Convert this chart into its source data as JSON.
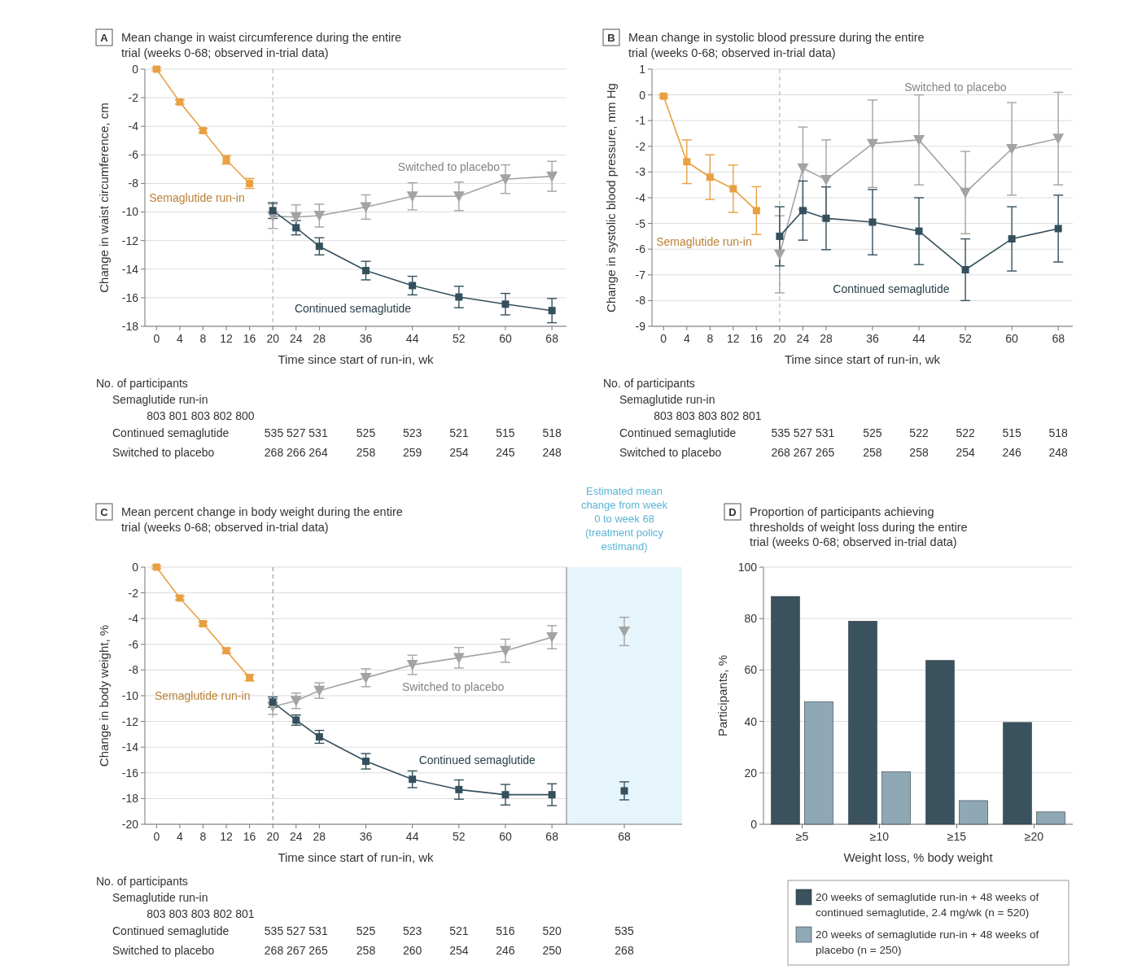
{
  "chart_data": [
    {
      "type": "line",
      "title": "A",
      "subtitle": "Mean change in waist circumference during the entire trial (weeks 0-68; observed in-trial data)",
      "xlabel": "Time since start of run-in, wk",
      "ylabel": "Change in waist circumference, cm",
      "xlim": [
        -2,
        70.5
      ],
      "xticks": [
        0,
        4,
        8,
        12,
        16,
        20,
        24,
        28,
        36,
        44,
        52,
        60,
        68
      ],
      "ylim": [
        -18,
        0
      ],
      "yticks": [
        -18,
        -16,
        -14,
        -12,
        -10,
        -8,
        -6,
        -4,
        -2,
        0
      ],
      "grid": "y",
      "ref_lines": [
        {
          "axis": "x",
          "value": 20,
          "line_style": "dashed",
          "color": "#a8a8a8"
        }
      ],
      "series": [
        {
          "name": "Semaglutide run-in",
          "color": "#e8a043",
          "marker": "square",
          "x": [
            0,
            4,
            8,
            12,
            16
          ],
          "values": [
            0,
            -2.3,
            -4.3,
            -6.35,
            -8.0
          ],
          "errors": [
            0.1,
            0.15,
            0.15,
            0.3,
            0.35
          ]
        },
        {
          "name": "Switched to placebo",
          "color": "#a3a3a3",
          "marker": "triangle",
          "x": [
            20,
            24,
            28,
            36,
            44,
            52,
            60,
            68
          ],
          "values": [
            -10.3,
            -10.35,
            -10.25,
            -9.65,
            -8.9,
            -8.9,
            -7.7,
            -7.5
          ],
          "errors": [
            0.85,
            0.85,
            0.8,
            0.85,
            0.95,
            1.0,
            1.0,
            1.05
          ]
        },
        {
          "name": "Continued semaglutide",
          "color": "#34505c",
          "marker": "square",
          "x": [
            20,
            24,
            28,
            36,
            44,
            52,
            60,
            68
          ],
          "values": [
            -9.9,
            -11.1,
            -12.4,
            -14.1,
            -15.15,
            -15.95,
            -16.45,
            -16.9
          ],
          "errors": [
            0.55,
            0.5,
            0.6,
            0.65,
            0.65,
            0.75,
            0.75,
            0.85
          ]
        }
      ],
      "annotations": [
        "No. of participants",
        "Semaglutide run-in",
        "803 801 803 802 800",
        "Continued semaglutide",
        "535 527 531",
        "525",
        "523",
        "521",
        "515",
        "518",
        "Switched to placebo",
        "268 266 264",
        "258",
        "259",
        "254",
        "245",
        "248"
      ]
    },
    {
      "type": "line",
      "title": "B",
      "subtitle": "Mean change in systolic blood pressure during the entire trial (weeks 0-68; observed in-trial data)",
      "xlabel": "Time since start of run-in, wk",
      "ylabel": "Change in systolic blood pressure, mm Hg",
      "xlim": [
        -2,
        70.5
      ],
      "xticks": [
        0,
        4,
        8,
        12,
        16,
        20,
        24,
        28,
        36,
        44,
        52,
        60,
        68
      ],
      "ylim": [
        -9,
        1
      ],
      "yticks": [
        -9,
        -8,
        -7,
        -6,
        -5,
        -4,
        -3,
        -2,
        -1,
        0,
        1
      ],
      "grid": "y",
      "ref_lines": [
        {
          "axis": "x",
          "value": 20,
          "line_style": "dashed",
          "color": "#a8a8a8"
        }
      ],
      "series": [
        {
          "name": "Semaglutide run-in",
          "color": "#e8a043",
          "marker": "square",
          "x": [
            0,
            4,
            8,
            12,
            16
          ],
          "values": [
            -0.05,
            -2.6,
            -3.2,
            -3.65,
            -4.5
          ],
          "errors": [
            0.05,
            0.85,
            0.87,
            0.92,
            0.93
          ]
        },
        {
          "name": "Switched to placebo",
          "color": "#a3a3a3",
          "marker": "triangle",
          "x": [
            20,
            24,
            28,
            36,
            44,
            52,
            60,
            68
          ],
          "values": [
            -6.2,
            -2.85,
            -3.3,
            -1.9,
            -1.75,
            -3.8,
            -2.1,
            -1.7
          ],
          "errors": [
            1.5,
            1.6,
            1.55,
            1.7,
            1.75,
            1.6,
            1.8,
            1.8
          ]
        },
        {
          "name": "Continued semaglutide",
          "color": "#34505c",
          "marker": "square",
          "x": [
            20,
            24,
            28,
            36,
            44,
            52,
            60,
            68
          ],
          "values": [
            -5.5,
            -4.5,
            -4.8,
            -4.95,
            -5.3,
            -6.8,
            -5.6,
            -5.2
          ],
          "errors": [
            1.15,
            1.15,
            1.22,
            1.27,
            1.3,
            1.2,
            1.25,
            1.3
          ]
        }
      ],
      "annotations": [
        "No. of participants",
        "Semaglutide run-in",
        "803 803 803 802 801",
        "Continued semaglutide",
        "535 527 531",
        "525",
        "522",
        "522",
        "515",
        "518",
        "Switched to placebo",
        "268 267 265",
        "258",
        "258",
        "254",
        "246",
        "248"
      ]
    },
    {
      "type": "line",
      "title": "C",
      "subtitle": "Mean percent change in body weight during the entire trial (weeks 0-68; observed in-trial data)",
      "xlabel": "Time since start of run-in, wk",
      "ylabel": "Change in body weight, %",
      "xlim": [
        -2,
        70.5
      ],
      "xticks": [
        0,
        4,
        8,
        12,
        16,
        20,
        24,
        28,
        36,
        44,
        52,
        60,
        68
      ],
      "ylim": [
        -20,
        0
      ],
      "yticks": [
        -20,
        -18,
        -16,
        -14,
        -12,
        -10,
        -8,
        -6,
        -4,
        -2,
        0
      ],
      "grid": "y",
      "ref_lines": [
        {
          "axis": "x",
          "value": 20,
          "line_style": "dashed",
          "color": "#8a8a8a"
        }
      ],
      "series": [
        {
          "name": "Semaglutide run-in",
          "color": "#e8a043",
          "marker": "square",
          "x": [
            0,
            4,
            8,
            12,
            16
          ],
          "values": [
            0,
            -2.4,
            -4.4,
            -6.5,
            -8.6
          ],
          "errors": [
            0.1,
            0.15,
            0.15,
            0.2,
            0.25
          ]
        },
        {
          "name": "Switched to placebo",
          "color": "#a3a3a3",
          "marker": "triangle",
          "x": [
            20,
            24,
            28,
            36,
            44,
            52,
            60,
            68
          ],
          "values": [
            -10.85,
            -10.4,
            -9.6,
            -8.6,
            -7.6,
            -7.05,
            -6.5,
            -5.45
          ],
          "errors": [
            0.6,
            0.6,
            0.6,
            0.7,
            0.75,
            0.8,
            0.9,
            0.9
          ]
        },
        {
          "name": "Continued semaglutide",
          "color": "#34505c",
          "marker": "square",
          "x": [
            20,
            24,
            28,
            36,
            44,
            52,
            60,
            68
          ],
          "values": [
            -10.5,
            -11.9,
            -13.2,
            -15.1,
            -16.5,
            -17.3,
            -17.7,
            -17.7
          ],
          "errors": [
            0.4,
            0.4,
            0.5,
            0.6,
            0.65,
            0.75,
            0.8,
            0.85
          ]
        }
      ],
      "annotations": [
        "No. of participants",
        "Semaglutide run-in",
        "803 803 803 802 801",
        "Continued semaglutide",
        "535 527 531",
        "525",
        "523",
        "521",
        "516",
        "520",
        "Switched to placebo",
        "268 267 265",
        "258",
        "260",
        "254",
        "246",
        "250"
      ]
    },
    {
      "type": "scatter",
      "title": "Estimated mean change from week 0 to week 68 (treatment policy estimand)",
      "categories": [
        "68"
      ],
      "ylim": [
        -20,
        0
      ],
      "tick_labels": "x",
      "bands": [
        {
          "axis": "y",
          "from": -20,
          "to": 0,
          "color": "#e6f4fb"
        }
      ],
      "series": [
        {
          "color": "#a3a3a3",
          "marker": "triangle",
          "values": [
            -5.0
          ],
          "errors": [
            1.1
          ]
        },
        {
          "color": "#34505c",
          "marker": "square",
          "values": [
            -17.4
          ],
          "errors": [
            0.7
          ]
        }
      ],
      "annotations": [
        "535",
        "268"
      ]
    },
    {
      "type": "bar",
      "title": "D",
      "subtitle": "Proportion of participants achieving thresholds of weight loss during the entire trial (weeks 0-68; observed in-trial data)",
      "xlabel": "Weight loss, % body weight",
      "ylabel": "Participants, %",
      "categories": [
        "≥5",
        "≥10",
        "≥15",
        "≥20"
      ],
      "ylim": [
        0,
        100
      ],
      "yticks": [
        0,
        20,
        40,
        60,
        80,
        100
      ],
      "grid": "y",
      "legend": "bottom",
      "series": [
        {
          "name": "20 weeks of semaglutide run-in + 48 weeks of continued semaglutide, 2.4 mg/wk (n = 520)",
          "color": "#3a525e",
          "values": [
            88.6,
            79.0,
            63.7,
            39.6
          ]
        },
        {
          "name": "20 weeks of semaglutide run-in + 48 weeks of placebo (n = 250)",
          "color": "#8fa8b6",
          "values": [
            47.6,
            20.4,
            9.2,
            4.8
          ]
        }
      ]
    }
  ]
}
